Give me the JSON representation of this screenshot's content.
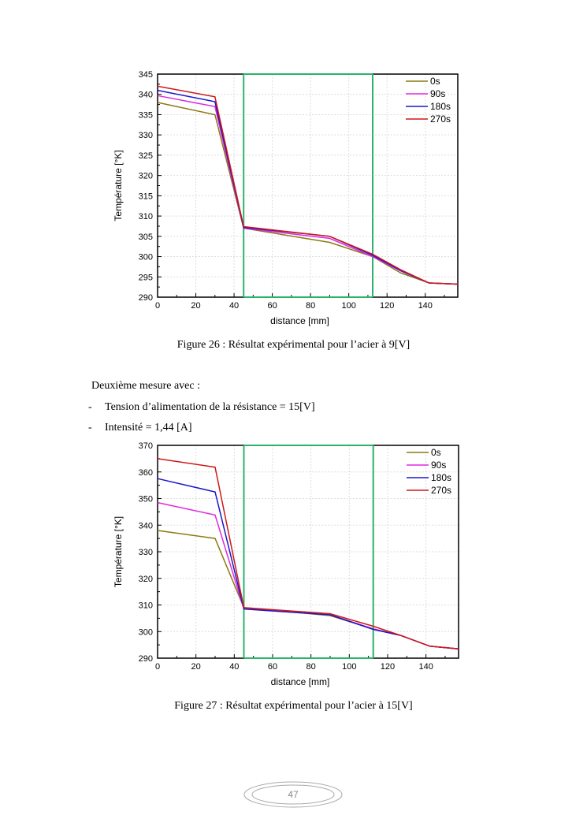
{
  "figures": [
    {
      "caption": "Figure 26 : Résultat expérimental pour l’acier à 9[V]"
    },
    {
      "caption": "Figure 27 : Résultat expérimental pour l’acier à 15[V]"
    }
  ],
  "text": {
    "intro": "Deuxième mesure avec :",
    "bullets": [
      {
        "marker": "-",
        "text": "Tension d’alimentation de la résistance = 15[V]"
      },
      {
        "marker": "-",
        "text": "Intensité = 1,44 [A]"
      }
    ]
  },
  "page_number": "47",
  "chart_data": [
    {
      "type": "line",
      "title": "",
      "xlabel": "distance [mm]",
      "ylabel": "Température [°K]",
      "xlim": [
        0,
        157
      ],
      "ylim": [
        290,
        345
      ],
      "xticks": [
        0,
        20,
        40,
        60,
        80,
        100,
        120,
        140
      ],
      "yticks": [
        290,
        295,
        300,
        305,
        310,
        315,
        320,
        325,
        330,
        335,
        340,
        345
      ],
      "grid": true,
      "legend": "top-right",
      "vlines": [
        45,
        112.5
      ],
      "vline_color": "#2bb36b",
      "x": [
        0,
        30,
        45,
        90,
        112.5,
        127,
        142,
        157
      ],
      "series": [
        {
          "name": "0s",
          "color": "#8a7a12",
          "values": [
            338,
            335,
            307,
            303.5,
            300,
            296,
            293.5,
            293.2
          ]
        },
        {
          "name": "90s",
          "color": "#e028e0",
          "values": [
            339.7,
            337,
            307,
            304.5,
            300,
            296.5,
            293.5,
            293.2
          ]
        },
        {
          "name": "180s",
          "color": "#1818c8",
          "values": [
            341,
            338.2,
            307.2,
            305,
            300.3,
            296.6,
            293.5,
            293.2
          ]
        },
        {
          "name": "270s",
          "color": "#d01818",
          "values": [
            342,
            339.4,
            307.4,
            305,
            300.6,
            296.8,
            293.5,
            293.2
          ]
        }
      ]
    },
    {
      "type": "line",
      "title": "",
      "xlabel": "distance [mm]",
      "ylabel": "Température [°K]",
      "xlim": [
        0,
        157
      ],
      "ylim": [
        290,
        370
      ],
      "xticks": [
        0,
        20,
        40,
        60,
        80,
        100,
        120,
        140
      ],
      "yticks": [
        290,
        300,
        310,
        320,
        330,
        340,
        350,
        360,
        370
      ],
      "grid": true,
      "legend": "top-right",
      "vlines": [
        45,
        112.5
      ],
      "vline_color": "#2bb36b",
      "x": [
        0,
        30,
        45,
        90,
        112.5,
        127,
        142,
        157
      ],
      "series": [
        {
          "name": "0s",
          "color": "#8a7a12",
          "values": [
            338,
            335,
            309,
            306,
            301,
            298.5,
            294.5,
            293.5
          ]
        },
        {
          "name": "90s",
          "color": "#e028e0",
          "values": [
            348.5,
            343.8,
            308.5,
            306.3,
            301,
            298.5,
            294.5,
            293.5
          ]
        },
        {
          "name": "180s",
          "color": "#1818c8",
          "values": [
            357.5,
            352.5,
            308.5,
            306.3,
            300.8,
            298.5,
            294.5,
            293.5
          ]
        },
        {
          "name": "270s",
          "color": "#d01818",
          "values": [
            365,
            361.8,
            309,
            306.7,
            302,
            298.5,
            294.5,
            293.5
          ]
        }
      ]
    }
  ]
}
